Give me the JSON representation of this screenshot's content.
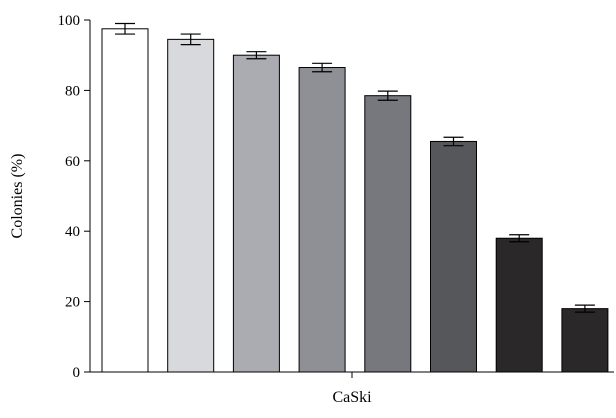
{
  "chart_data": {
    "type": "bar",
    "title": "",
    "xlabel": "CaSki",
    "ylabel": "Colonies (%)",
    "ylim": [
      0,
      100
    ],
    "y_ticks": [
      0,
      20,
      40,
      60,
      80,
      100
    ],
    "grid": false,
    "legend": "none",
    "categories": [
      "",
      "",
      "",
      "",
      "",
      "",
      "",
      ""
    ],
    "series": [
      {
        "values": [
          97.5,
          94.5,
          90.0,
          86.5,
          78.5,
          65.5,
          38.0,
          18.0
        ],
        "errors": [
          1.5,
          1.5,
          1.0,
          1.2,
          1.3,
          1.2,
          1.0,
          1.0
        ]
      }
    ],
    "bar_colors": [
      "#ffffff",
      "#d8d9dc",
      "#aaacb1",
      "#8f9096",
      "#77787d",
      "#56575b",
      "#2b2829",
      "#2b2829"
    ]
  }
}
